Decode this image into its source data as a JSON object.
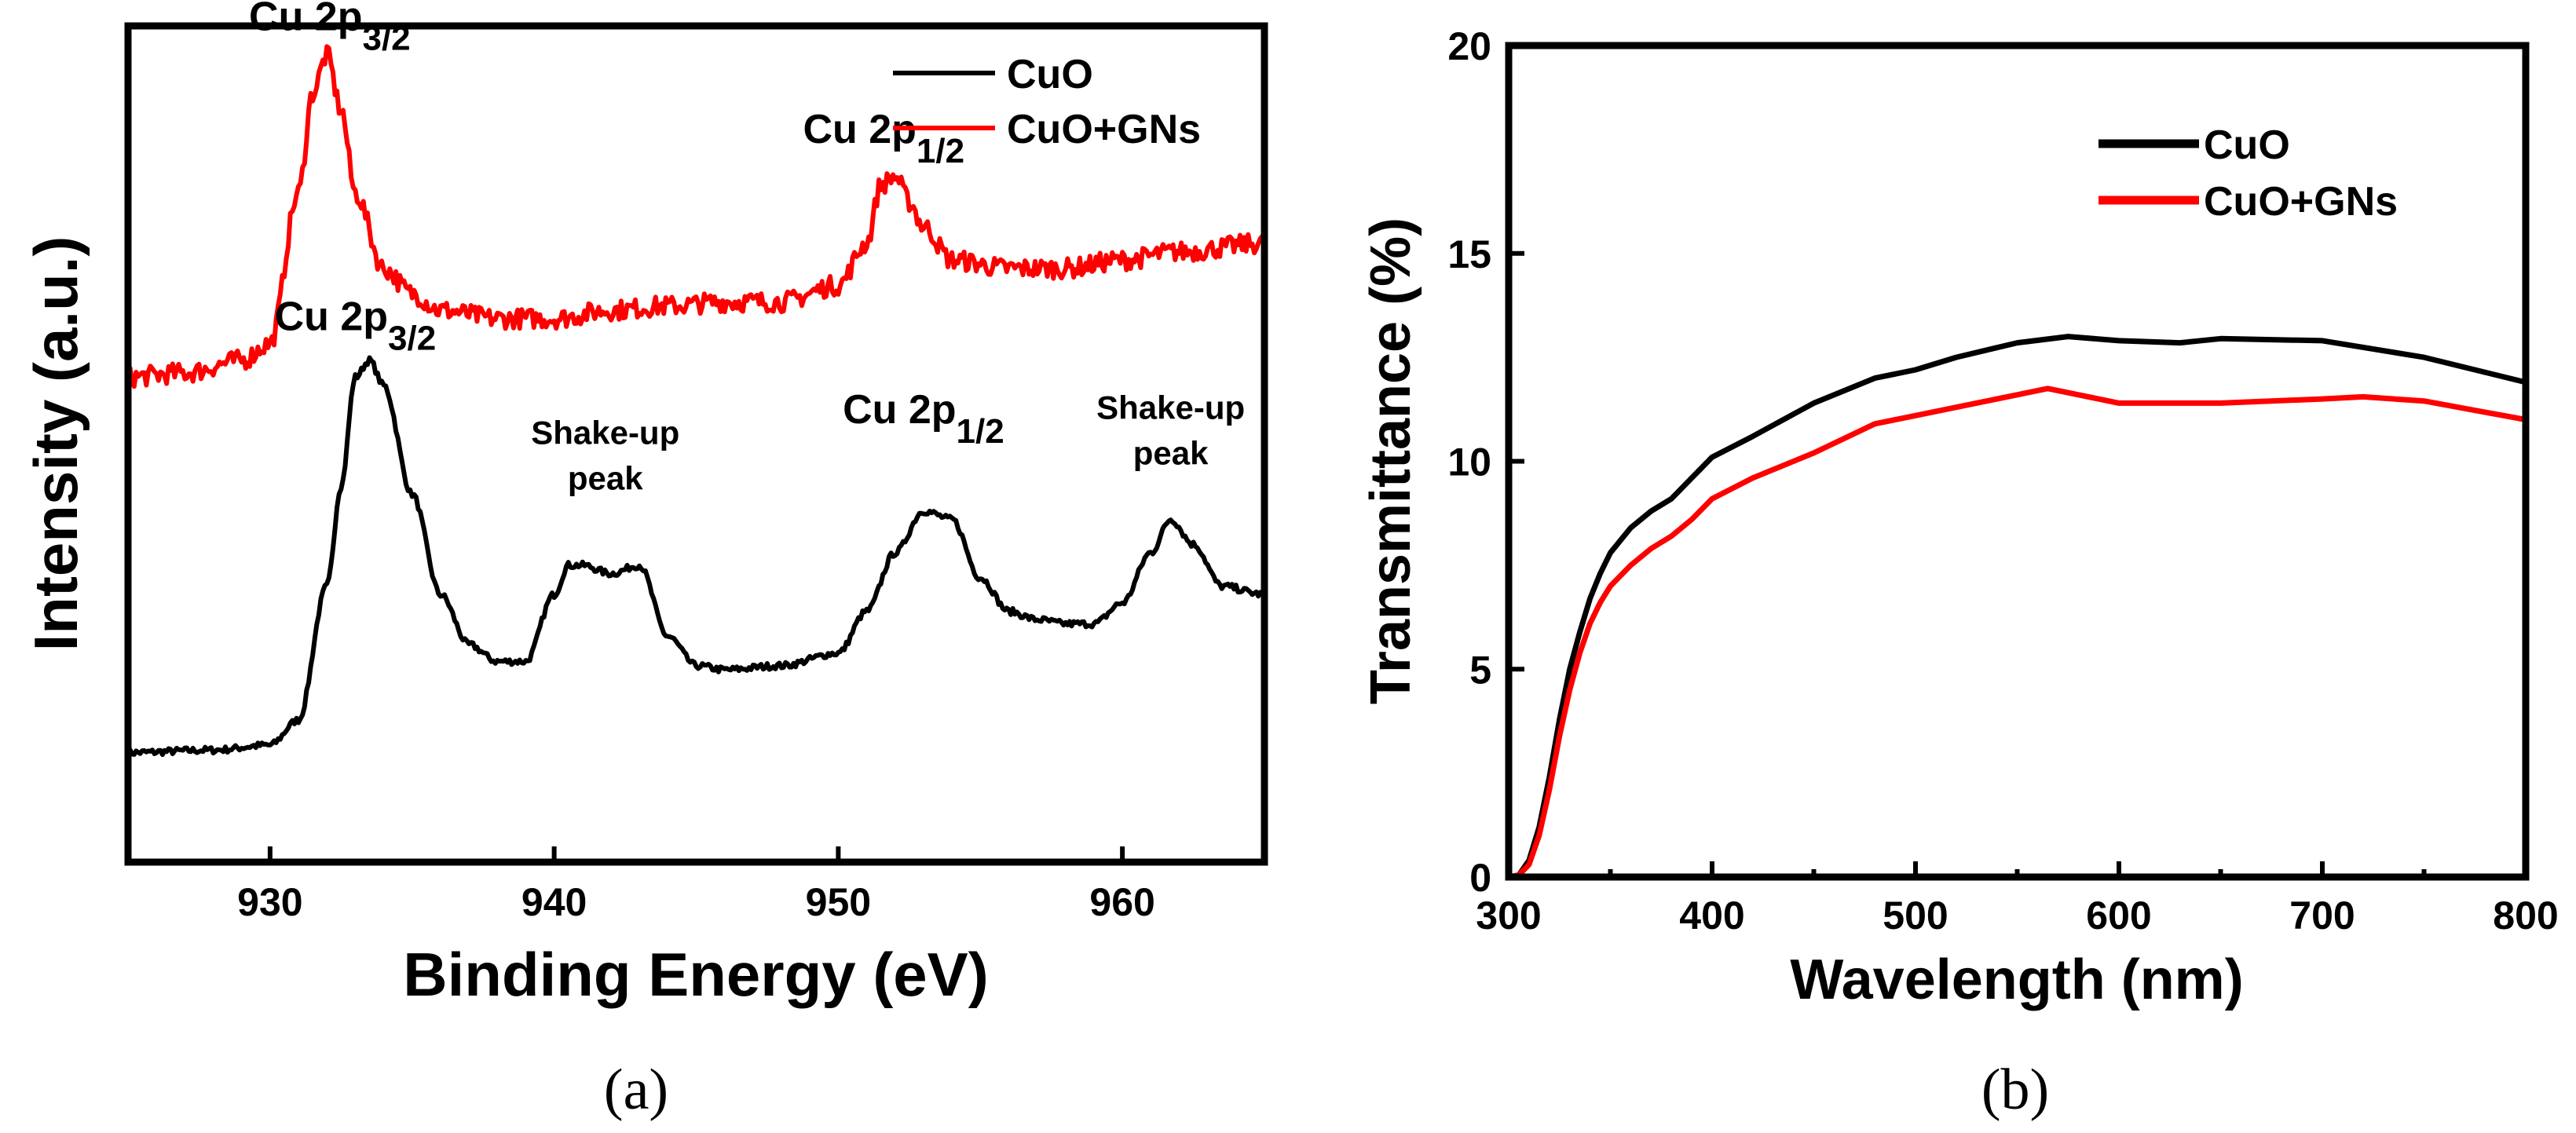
{
  "colors": {
    "black": "#000000",
    "red": "#ff0000"
  },
  "chart_data": [
    {
      "id": "a",
      "type": "line",
      "caption": "(a)",
      "xlabel": "Binding Energy (eV)",
      "ylabel": "Intensity (a.u.)",
      "xlim": [
        925,
        965
      ],
      "ylim": [
        0,
        1
      ],
      "xticks": [
        930,
        940,
        950,
        960
      ],
      "xtick_labels": [
        "930",
        "940",
        "950",
        "960"
      ],
      "yticks_shown": false,
      "legend": [
        "CuO",
        "CuO+GNs"
      ],
      "series": [
        {
          "name": "CuO",
          "color": "#000000",
          "noise": 0.004,
          "x": [
            925,
            928,
            930,
            931,
            932,
            932.5,
            933,
            933.5,
            934,
            935,
            936,
            937,
            938,
            939,
            940,
            940.5,
            941,
            942,
            943,
            944,
            945,
            946,
            948,
            950,
            951,
            952,
            953,
            954,
            955,
            956,
            957,
            958,
            959,
            960,
            961,
            961.7,
            962.5,
            963.5,
            965
          ],
          "values": [
            0.131,
            0.134,
            0.14,
            0.17,
            0.33,
            0.45,
            0.58,
            0.6,
            0.57,
            0.44,
            0.32,
            0.26,
            0.24,
            0.24,
            0.32,
            0.355,
            0.355,
            0.345,
            0.355,
            0.27,
            0.235,
            0.23,
            0.235,
            0.25,
            0.3,
            0.37,
            0.42,
            0.41,
            0.34,
            0.3,
            0.29,
            0.285,
            0.285,
            0.31,
            0.37,
            0.41,
            0.38,
            0.33,
            0.32
          ]
        },
        {
          "name": "CuO+GNs",
          "color": "#ff0000",
          "noise": 0.012,
          "x": [
            925,
            927,
            929,
            930,
            931,
            931.5,
            932,
            932.5,
            933,
            934,
            935,
            936,
            938,
            940,
            942,
            944,
            946,
            948,
            950,
            951,
            951.5,
            952,
            952.5,
            953,
            954,
            956,
            958,
            960,
            962,
            965
          ],
          "values": [
            0.58,
            0.585,
            0.6,
            0.62,
            0.8,
            0.92,
            0.965,
            0.9,
            0.8,
            0.71,
            0.68,
            0.66,
            0.65,
            0.65,
            0.66,
            0.665,
            0.67,
            0.67,
            0.69,
            0.74,
            0.81,
            0.82,
            0.79,
            0.76,
            0.72,
            0.71,
            0.71,
            0.72,
            0.73,
            0.74
          ]
        }
      ],
      "annotations": [
        {
          "base": "Cu 2p",
          "sub": "3/2",
          "x": 932.1,
          "y": 0.995,
          "size": "lg"
        },
        {
          "base": "Cu 2p",
          "sub": "1/2",
          "x": 951.6,
          "y": 0.86,
          "size": "lg"
        },
        {
          "base": "Cu 2p",
          "sub": "3/2",
          "x": 933,
          "y": 0.636,
          "size": "lg"
        },
        {
          "base": "Cu 2p",
          "sub": "1/2",
          "x": 953,
          "y": 0.525,
          "size": "lg"
        },
        {
          "lines": [
            "Shake-up",
            "peak"
          ],
          "x": 941.8,
          "y": 0.5,
          "size": "sm"
        },
        {
          "lines": [
            "Shake-up",
            "peak"
          ],
          "x": 961.7,
          "y": 0.53,
          "size": "sm"
        }
      ]
    },
    {
      "id": "b",
      "type": "line",
      "caption": "(b)",
      "xlabel": "Wavelength (nm)",
      "ylabel": "Transmittance (%)",
      "xlim": [
        300,
        800
      ],
      "ylim": [
        0,
        20
      ],
      "xticks": [
        300,
        400,
        500,
        600,
        700,
        800
      ],
      "xtick_labels": [
        "300",
        "400",
        "500",
        "600",
        "700",
        "800"
      ],
      "xminor": [
        350,
        450,
        550,
        650,
        750
      ],
      "yticks": [
        0,
        5,
        10,
        15,
        20
      ],
      "ytick_labels": [
        "0",
        "5",
        "10",
        "15",
        "20"
      ],
      "legend": [
        "CuO",
        "CuO+GNs"
      ],
      "series": [
        {
          "name": "CuO",
          "color": "#000000",
          "x": [
            300,
            305,
            310,
            315,
            320,
            325,
            330,
            335,
            340,
            345,
            350,
            360,
            370,
            380,
            390,
            400,
            420,
            450,
            480,
            500,
            520,
            550,
            575,
            600,
            630,
            650,
            700,
            750,
            800
          ],
          "values": [
            0,
            0.05,
            0.4,
            1.2,
            2.4,
            3.8,
            5.0,
            5.9,
            6.7,
            7.3,
            7.8,
            8.4,
            8.8,
            9.1,
            9.6,
            10.1,
            10.6,
            11.4,
            12.0,
            12.2,
            12.5,
            12.85,
            13.0,
            12.9,
            12.85,
            12.95,
            12.9,
            12.5,
            11.9
          ]
        },
        {
          "name": "CuO+GNs",
          "color": "#ff0000",
          "x": [
            300,
            305,
            310,
            315,
            320,
            325,
            330,
            335,
            340,
            345,
            350,
            360,
            370,
            380,
            390,
            400,
            420,
            450,
            480,
            500,
            520,
            550,
            565,
            600,
            650,
            700,
            720,
            750,
            800
          ],
          "values": [
            0,
            0.05,
            0.3,
            1.0,
            2.1,
            3.4,
            4.5,
            5.4,
            6.1,
            6.6,
            7.0,
            7.5,
            7.9,
            8.2,
            8.6,
            9.1,
            9.6,
            10.2,
            10.9,
            11.1,
            11.3,
            11.6,
            11.75,
            11.4,
            11.4,
            11.5,
            11.55,
            11.45,
            11.0
          ]
        }
      ]
    }
  ]
}
